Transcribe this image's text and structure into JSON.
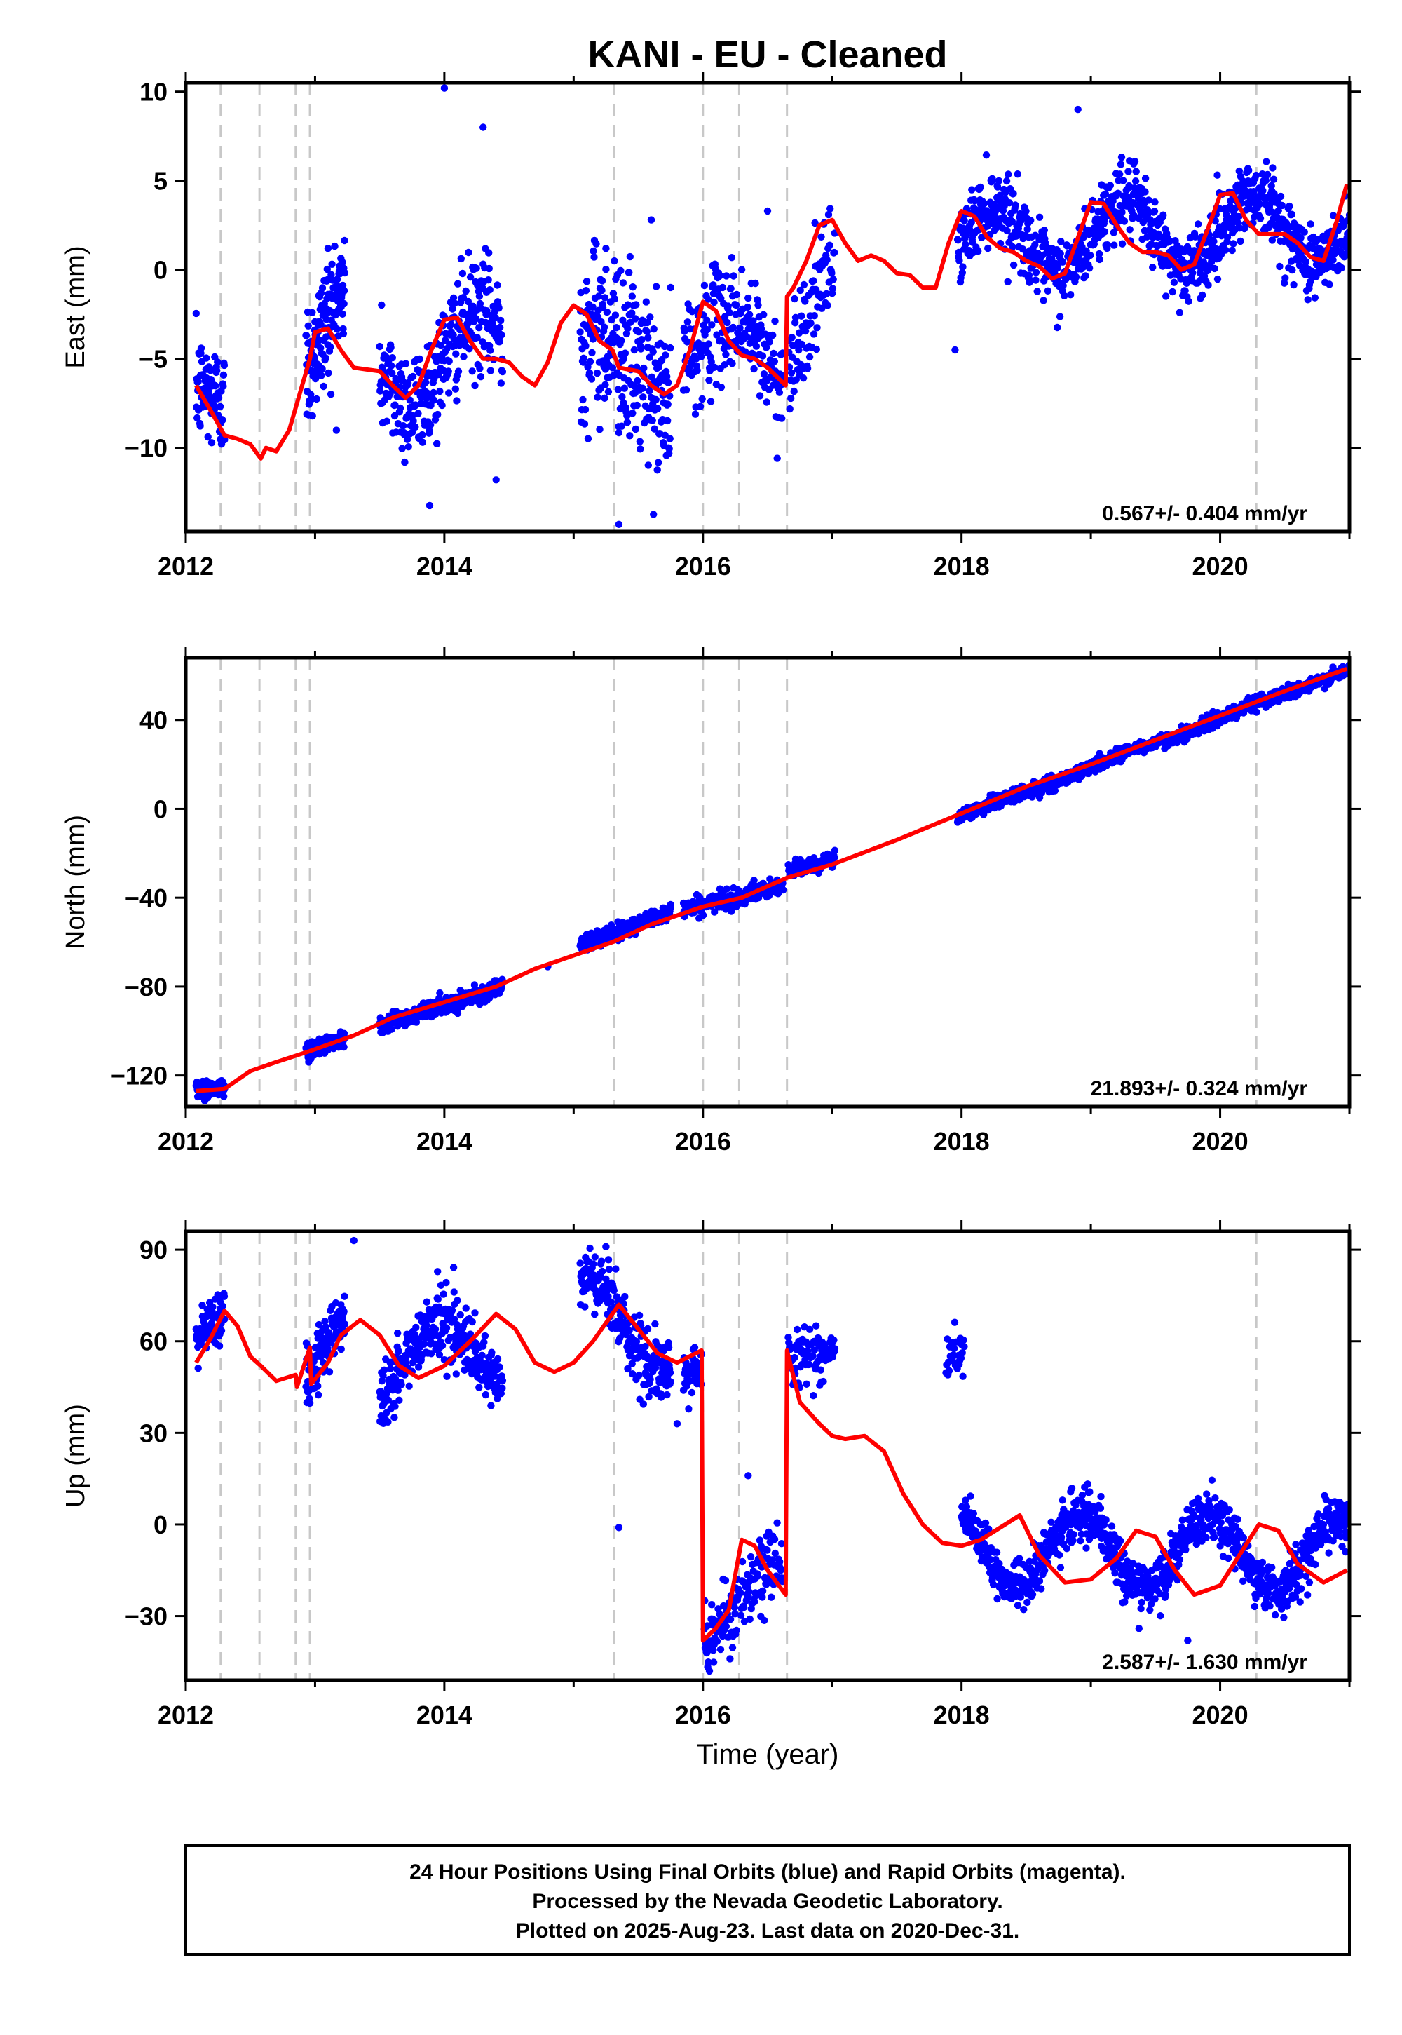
{
  "figure": {
    "title": "KANI  - EU - Cleaned",
    "xlabel": "Time (year)",
    "footer": [
      "24 Hour Positions Using Final Orbits (blue) and Rapid Orbits (magenta).",
      "Processed by the Nevada Geodetic Laboratory.",
      "Plotted on 2025-Aug-23. Last data on 2020-Dec-31."
    ],
    "colors": {
      "data": "#0000ff",
      "model": "#ff0000",
      "steps": "#c8c8c8",
      "frame": "#000000"
    }
  },
  "chart_data": [
    {
      "type": "scatter",
      "name": "East",
      "ylabel": "East (mm)",
      "rate_label": "0.567+/- 0.404 mm/yr",
      "xlim": [
        2012.0,
        2021.0
      ],
      "ylim": [
        -14.7,
        10.5
      ],
      "x_ticks": [
        2012,
        2014,
        2016,
        2018,
        2020
      ],
      "x_tick_labels": [
        "2012",
        "2014",
        "2016",
        "2018",
        "2020"
      ],
      "y_ticks": [
        10,
        5,
        0,
        -5,
        -10
      ],
      "y_tick_labels": [
        "10",
        "5",
        "0",
        "−5",
        "−10"
      ],
      "step_dates": [
        2012.27,
        2012.57,
        2012.85,
        2012.96,
        2015.31,
        2016.0,
        2016.28,
        2016.65,
        2020.28
      ],
      "series": [
        {
          "name": "model",
          "role": "model",
          "x": [
            2012.08,
            2012.2,
            2012.3,
            2012.4,
            2012.5,
            2012.58,
            2012.62,
            2012.7,
            2012.8,
            2012.9,
            2012.96,
            2013.0,
            2013.1,
            2013.2,
            2013.3,
            2013.4,
            2013.5,
            2013.6,
            2013.7,
            2013.8,
            2013.9,
            2014.0,
            2014.1,
            2014.2,
            2014.3,
            2014.4,
            2014.5,
            2014.6,
            2014.7,
            2014.8,
            2014.9,
            2015.0,
            2015.1,
            2015.2,
            2015.3,
            2015.35,
            2015.5,
            2015.6,
            2015.7,
            2015.8,
            2015.9,
            2016.0,
            2016.1,
            2016.2,
            2016.3,
            2016.4,
            2016.5,
            2016.64,
            2016.65,
            2016.7,
            2016.8,
            2016.9,
            2017.0,
            2017.1,
            2017.2,
            2017.3,
            2017.4,
            2017.5,
            2017.6,
            2017.7,
            2017.8,
            2017.9,
            2018.0,
            2018.1,
            2018.2,
            2018.3,
            2018.4,
            2018.5,
            2018.6,
            2018.7,
            2018.8,
            2018.9,
            2019.0,
            2019.1,
            2019.2,
            2019.3,
            2019.4,
            2019.5,
            2019.6,
            2019.7,
            2019.8,
            2019.9,
            2020.0,
            2020.1,
            2020.2,
            2020.3,
            2020.4,
            2020.5,
            2020.6,
            2020.7,
            2020.8,
            2020.9,
            2020.98
          ],
          "y": [
            -6.5,
            -8.0,
            -9.3,
            -9.5,
            -9.8,
            -10.6,
            -10.0,
            -10.2,
            -9.0,
            -6.5,
            -5.0,
            -3.5,
            -3.3,
            -4.5,
            -5.5,
            -5.6,
            -5.7,
            -6.5,
            -7.2,
            -6.5,
            -4.5,
            -2.8,
            -2.7,
            -4.0,
            -5.0,
            -5.0,
            -5.2,
            -6.0,
            -6.5,
            -5.2,
            -3.0,
            -2.0,
            -2.5,
            -4.0,
            -4.5,
            -5.5,
            -5.7,
            -6.5,
            -7.0,
            -6.5,
            -4.5,
            -1.8,
            -2.3,
            -4.0,
            -4.8,
            -5.0,
            -5.5,
            -6.5,
            -1.5,
            -1.0,
            0.5,
            2.5,
            2.8,
            1.5,
            0.5,
            0.8,
            0.5,
            -0.2,
            -0.3,
            -1.0,
            -1.0,
            1.5,
            3.3,
            3.0,
            1.8,
            1.2,
            1.0,
            0.5,
            0.2,
            -0.5,
            -0.2,
            1.8,
            3.8,
            3.7,
            2.5,
            1.5,
            1.0,
            1.0,
            0.8,
            0.0,
            0.3,
            2.2,
            4.2,
            4.3,
            2.8,
            2.0,
            2.0,
            2.0,
            1.5,
            0.7,
            0.5,
            2.7,
            4.8
          ]
        },
        {
          "name": "daily positions",
          "role": "data",
          "segments": [
            {
              "x0": 2012.08,
              "x1": 2012.3,
              "n": 85,
              "amp": 0.8,
              "phase": 0,
              "trend0": -7.0,
              "trend1": -8.3,
              "noise": 1.5
            },
            {
              "x0": 2012.93,
              "x1": 2013.23,
              "n": 140,
              "amp": 1.5,
              "phase": 0,
              "trend0": -5.0,
              "trend1": -2.5,
              "noise": 1.8
            },
            {
              "x0": 2013.5,
              "x1": 2014.45,
              "n": 330,
              "amp": 2.2,
              "phase": 0,
              "trend0": -5.5,
              "trend1": -4.5,
              "noise": 1.6
            },
            {
              "x0": 2015.05,
              "x1": 2015.75,
              "n": 260,
              "amp": 1.2,
              "phase": 0,
              "trend0": -4.0,
              "trend1": -6.5,
              "noise": 2.4
            },
            {
              "x0": 2015.85,
              "x1": 2016.62,
              "n": 220,
              "amp": 1.8,
              "phase": 0,
              "trend0": -3.5,
              "trend1": -5.5,
              "noise": 1.6
            },
            {
              "x0": 2016.66,
              "x1": 2017.02,
              "n": 90,
              "amp": 1.0,
              "phase": 0,
              "trend0": -4.0,
              "trend1": 1.0,
              "noise": 1.5
            },
            {
              "x0": 2017.97,
              "x1": 2021.0,
              "n": 1000,
              "amp": 2.0,
              "phase": 0,
              "trend0": 1.5,
              "trend1": 2.5,
              "noise": 1.0
            }
          ],
          "extra": [
            [
              2014.0,
              10.2
            ],
            [
              2014.3,
              8.0
            ],
            [
              2014.4,
              -11.8
            ],
            [
              2015.6,
              2.8
            ],
            [
              2016.5,
              3.3
            ],
            [
              2015.35,
              -14.3
            ],
            [
              2017.95,
              -4.5
            ],
            [
              2018.9,
              9.0
            ],
            [
              2015.25,
              1.2
            ],
            [
              2013.1,
              1.2
            ]
          ]
        }
      ]
    },
    {
      "type": "scatter",
      "name": "North",
      "ylabel": "North (mm)",
      "rate_label": "21.893+/- 0.324 mm/yr",
      "xlim": [
        2012.0,
        2021.0
      ],
      "ylim": [
        -134,
        68
      ],
      "x_ticks": [
        2012,
        2014,
        2016,
        2018,
        2020
      ],
      "x_tick_labels": [
        "2012",
        "2014",
        "2016",
        "2018",
        "2020"
      ],
      "y_ticks": [
        40,
        0,
        -40,
        -80,
        -120
      ],
      "y_tick_labels": [
        "40",
        "0",
        "−40",
        "−80",
        "−120"
      ],
      "step_dates": [
        2012.27,
        2012.57,
        2012.85,
        2012.96,
        2015.31,
        2016.0,
        2016.28,
        2016.65,
        2020.28
      ],
      "series": [
        {
          "name": "model",
          "role": "model",
          "x": [
            2012.08,
            2012.3,
            2012.5,
            2012.7,
            2012.96,
            2013.3,
            2013.6,
            2014.0,
            2014.4,
            2014.7,
            2015.0,
            2015.3,
            2015.6,
            2016.0,
            2016.3,
            2016.65,
            2017.0,
            2017.5,
            2018.0,
            2018.5,
            2019.0,
            2019.5,
            2020.0,
            2020.5,
            2020.98
          ],
          "y": [
            -127,
            -126,
            -118,
            -114,
            -109,
            -102,
            -94,
            -87,
            -80,
            -72,
            -66,
            -60,
            -52,
            -44,
            -40,
            -31,
            -25,
            -14,
            -2,
            10,
            20,
            31,
            42,
            53,
            63
          ]
        },
        {
          "name": "daily positions",
          "role": "data",
          "segments": [
            {
              "x0": 2012.08,
              "x1": 2012.3,
              "n": 70,
              "amp": 0,
              "phase": 0,
              "trend0": -126,
              "trend1": -126,
              "noise": 2.2
            },
            {
              "x0": 2012.93,
              "x1": 2013.23,
              "n": 130,
              "amp": 0,
              "phase": 0,
              "trend0": -109,
              "trend1": -103,
              "noise": 2.0
            },
            {
              "x0": 2013.5,
              "x1": 2014.45,
              "n": 330,
              "amp": 0,
              "phase": 0,
              "trend0": -97,
              "trend1": -80,
              "noise": 1.8
            },
            {
              "x0": 2015.05,
              "x1": 2015.75,
              "n": 250,
              "amp": 0,
              "phase": 0,
              "trend0": -62,
              "trend1": -46,
              "noise": 1.8
            },
            {
              "x0": 2015.85,
              "x1": 2016.62,
              "n": 220,
              "amp": 0,
              "phase": 0,
              "trend0": -45,
              "trend1": -35,
              "noise": 2.0
            },
            {
              "x0": 2016.66,
              "x1": 2017.02,
              "n": 90,
              "amp": 0,
              "phase": 0,
              "trend0": -28,
              "trend1": -22,
              "noise": 1.8
            },
            {
              "x0": 2017.97,
              "x1": 2021.0,
              "n": 1000,
              "amp": 0.8,
              "phase": 0,
              "trend0": -4,
              "trend1": 63,
              "noise": 1.5
            }
          ],
          "extra": [
            [
              2014.8,
              -71
            ]
          ]
        }
      ]
    },
    {
      "type": "scatter",
      "name": "Up",
      "ylabel": "Up (mm)",
      "rate_label": "2.587+/- 1.630 mm/yr",
      "xlim": [
        2012.0,
        2021.0
      ],
      "ylim": [
        -51,
        96
      ],
      "x_ticks": [
        2012,
        2014,
        2016,
        2018,
        2020
      ],
      "x_tick_labels": [
        "2012",
        "2014",
        "2016",
        "2018",
        "2020"
      ],
      "y_ticks": [
        90,
        60,
        30,
        0,
        -30
      ],
      "y_tick_labels": [
        "90",
        "60",
        "30",
        "0",
        "−30"
      ],
      "step_dates": [
        2012.27,
        2012.57,
        2012.85,
        2012.96,
        2015.31,
        2016.0,
        2016.28,
        2016.65,
        2020.28
      ],
      "series": [
        {
          "name": "model",
          "role": "model",
          "x": [
            2012.08,
            2012.18,
            2012.3,
            2012.4,
            2012.5,
            2012.58,
            2012.7,
            2012.85,
            2012.86,
            2012.96,
            2012.97,
            2013.1,
            2013.2,
            2013.35,
            2013.5,
            2013.65,
            2013.8,
            2014.0,
            2014.2,
            2014.4,
            2014.55,
            2014.7,
            2014.85,
            2015.0,
            2015.15,
            2015.35,
            2015.5,
            2015.65,
            2015.8,
            2015.99,
            2016.0,
            2016.1,
            2016.2,
            2016.3,
            2016.4,
            2016.5,
            2016.64,
            2016.65,
            2016.75,
            2016.9,
            2017.0,
            2017.1,
            2017.25,
            2017.4,
            2017.55,
            2017.7,
            2017.85,
            2018.0,
            2018.15,
            2018.3,
            2018.45,
            2018.6,
            2018.8,
            2019.0,
            2019.2,
            2019.35,
            2019.5,
            2019.65,
            2019.8,
            2020.0,
            2020.15,
            2020.3,
            2020.45,
            2020.6,
            2020.8,
            2020.98
          ],
          "y": [
            53,
            60,
            70,
            65,
            55,
            52,
            47,
            49,
            45,
            58,
            46,
            53,
            62,
            67,
            62,
            52,
            48,
            52,
            60,
            69,
            64,
            53,
            50,
            53,
            60,
            72,
            64,
            56,
            53,
            57,
            -38,
            -34,
            -28,
            -5,
            -7,
            -15,
            -23,
            57,
            40,
            33,
            29,
            28,
            29,
            24,
            10,
            0,
            -6,
            -7,
            -5,
            -1,
            3,
            -10,
            -19,
            -18,
            -11,
            -2,
            -4,
            -15,
            -23,
            -20,
            -10,
            0,
            -2,
            -13,
            -19,
            -15
          ]
        },
        {
          "name": "daily positions",
          "role": "data",
          "segments": [
            {
              "x0": 2012.08,
              "x1": 2012.3,
              "n": 85,
              "amp": 3,
              "phase": 0,
              "trend0": 58,
              "trend1": 68,
              "noise": 4
            },
            {
              "x0": 2012.93,
              "x1": 2013.23,
              "n": 130,
              "amp": 4,
              "phase": 0,
              "trend0": 50,
              "trend1": 65,
              "noise": 5
            },
            {
              "x0": 2013.5,
              "x1": 2014.45,
              "n": 330,
              "amp": 12,
              "phase": 0.3,
              "trend0": 52,
              "trend1": 58,
              "noise": 5.5
            },
            {
              "x0": 2015.05,
              "x1": 2015.75,
              "n": 250,
              "amp": 10,
              "phase": 0.1,
              "trend0": 72,
              "trend1": 58,
              "noise": 5
            },
            {
              "x0": 2015.85,
              "x1": 2015.99,
              "n": 40,
              "amp": 0,
              "phase": 0,
              "trend0": 50,
              "trend1": 50,
              "noise": 5
            },
            {
              "x0": 2016.01,
              "x1": 2016.62,
              "n": 160,
              "amp": 0,
              "phase": 0,
              "trend0": -38,
              "trend1": -10,
              "noise": 6
            },
            {
              "x0": 2016.66,
              "x1": 2017.02,
              "n": 90,
              "amp": 0,
              "phase": 0,
              "trend0": 56,
              "trend1": 56,
              "noise": 5
            },
            {
              "x0": 2017.88,
              "x1": 2018.02,
              "n": 30,
              "amp": 0,
              "phase": 0,
              "trend0": 55,
              "trend1": 55,
              "noise": 5
            },
            {
              "x0": 2018.0,
              "x1": 2021.0,
              "n": 1000,
              "amp": 12,
              "phase": 0.33,
              "trend0": -8,
              "trend1": -10,
              "noise": 4
            }
          ],
          "extra": [
            [
              2015.35,
              -1
            ],
            [
              2013.3,
              93
            ],
            [
              2015.25,
              91
            ],
            [
              2015.8,
              33
            ],
            [
              2016.35,
              16
            ],
            [
              2016.05,
              -48
            ],
            [
              2019.75,
              -38
            ]
          ]
        }
      ]
    }
  ]
}
